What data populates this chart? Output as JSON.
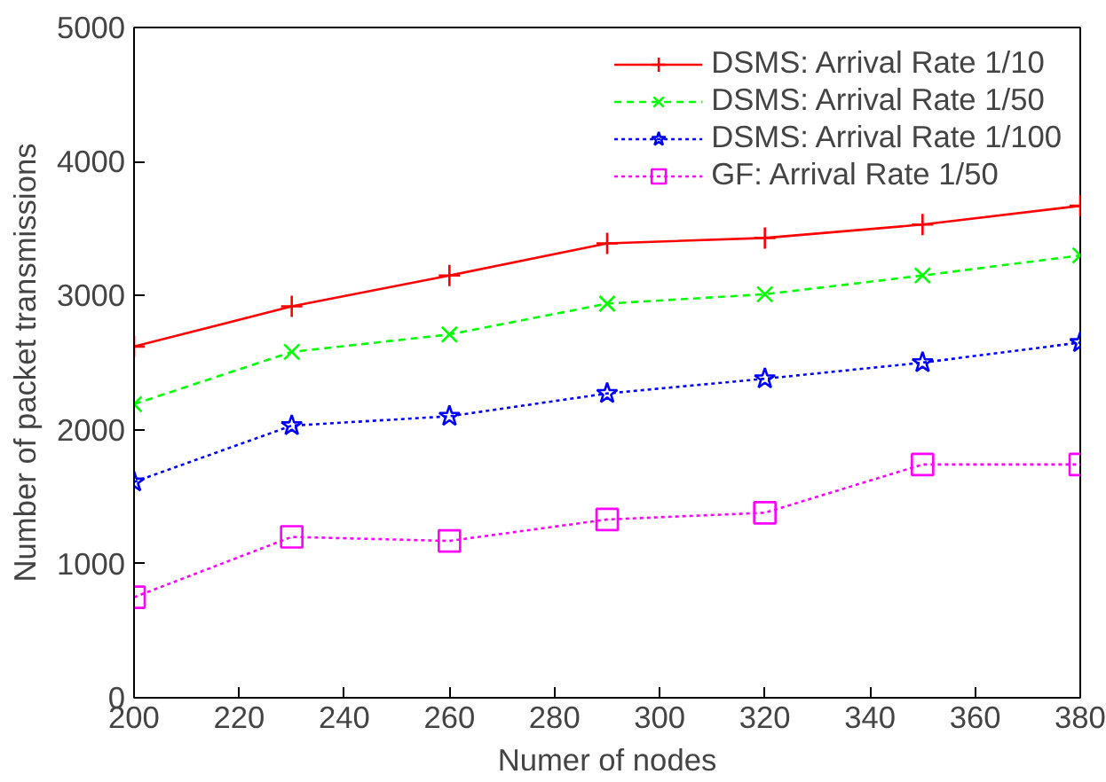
{
  "chart_data": {
    "type": "line",
    "xlabel": "Numer of nodes",
    "ylabel": "Number of packet transmissions",
    "x": [
      200,
      230,
      260,
      290,
      320,
      350,
      380
    ],
    "xlim": [
      200,
      380
    ],
    "xticks": [
      200,
      220,
      240,
      260,
      280,
      300,
      320,
      340,
      360,
      380
    ],
    "ylim": [
      0,
      5000
    ],
    "yticks": [
      0,
      1000,
      2000,
      3000,
      4000,
      5000
    ],
    "grid": false,
    "legend": "top right",
    "series": [
      {
        "name": "DSMS: Arrival Rate 1/10",
        "color": "#ff0000",
        "marker": "cross",
        "line_style": "solid",
        "values": [
          2620,
          2920,
          3150,
          3390,
          3430,
          3530,
          3670
        ]
      },
      {
        "name": "DSMS: Arrival Rate 1/50",
        "color": "#00ff00",
        "marker": "x",
        "line_style": "dashed",
        "values": [
          2190,
          2580,
          2710,
          2940,
          3010,
          3150,
          3300
        ]
      },
      {
        "name": "DSMS: Arrival Rate 1/100",
        "color": "#0000ff",
        "marker": "star",
        "line_style": "dotted",
        "values": [
          1610,
          2030,
          2100,
          2270,
          2380,
          2500,
          2650
        ]
      },
      {
        "name": "GF: Arrival Rate 1/50",
        "color": "#ff00ff",
        "marker": "square",
        "line_style": "dotted",
        "values": [
          750,
          1200,
          1170,
          1330,
          1380,
          1740,
          1740
        ]
      }
    ]
  }
}
